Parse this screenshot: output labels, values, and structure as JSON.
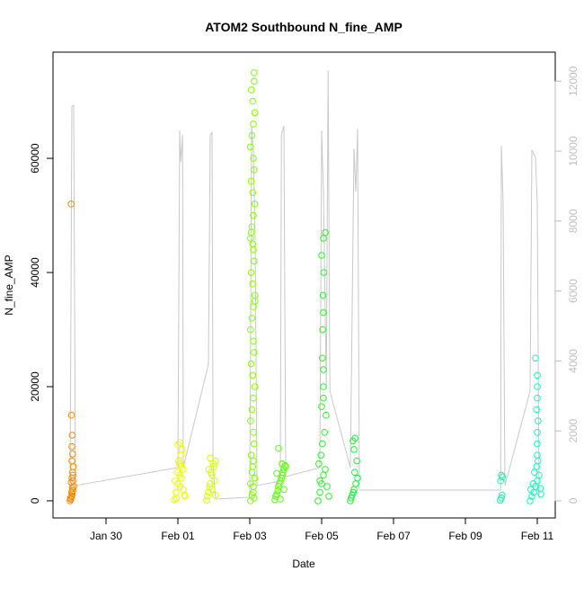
{
  "chart_data": {
    "type": "scatter",
    "title": "ATOM2 Southbound N_fine_AMP",
    "x_label": "Date",
    "y_label": "N_fine_AMP",
    "xlim": [
      28.525,
      42.5
    ],
    "xticks": [
      {
        "value": 30,
        "label": "Jan 30"
      },
      {
        "value": 32,
        "label": "Feb 01"
      },
      {
        "value": 34,
        "label": "Feb 03"
      },
      {
        "value": 36,
        "label": "Feb 05"
      },
      {
        "value": 38,
        "label": "Feb 07"
      },
      {
        "value": 40,
        "label": "Feb 09"
      },
      {
        "value": 42,
        "label": "Feb 11"
      }
    ],
    "ylim": [
      -3000,
      78600
    ],
    "yticks": [
      0,
      20000,
      40000,
      60000
    ],
    "y2lim": [
      -490,
      12830
    ],
    "y2ticks": [
      0,
      2000,
      4000,
      6000,
      8000,
      10000,
      12000
    ],
    "y2_color": "#bebebe",
    "series": [
      {
        "color": "#f58a0a",
        "x": [
          29.0,
          29.02,
          29.04,
          29.06,
          29.08,
          29.1,
          29.03,
          29.05,
          29.07,
          29.09,
          29.01,
          29.04,
          29.06,
          29.08,
          29.05,
          29.07,
          29.05,
          29.06,
          29.04,
          29.03,
          29.05,
          29.08
        ],
        "values": [
          0,
          300,
          700,
          1200,
          1800,
          2500,
          3200,
          4000,
          5000,
          6000,
          500,
          1500,
          2200,
          3500,
          7000,
          8200,
          9500,
          11500,
          15000,
          52000,
          900,
          4500
        ]
      },
      {
        "color": "#e8ff00",
        "x": [
          31.9,
          31.95,
          32.0,
          32.05,
          32.1,
          32.15,
          32.2,
          31.92,
          31.98,
          32.02,
          32.08,
          32.12,
          32.18,
          32.0,
          32.05,
          32.1,
          31.96,
          32.04,
          32.06,
          32.14
        ],
        "values": [
          200,
          1500,
          3000,
          4500,
          6000,
          2000,
          800,
          3500,
          5000,
          7000,
          8000,
          9000,
          1000,
          9800,
          10200,
          4000,
          500,
          6500,
          2500,
          5500
        ]
      },
      {
        "color": "#d6ff00",
        "x": [
          32.8,
          32.85,
          32.9,
          32.95,
          33.0,
          33.05,
          32.82,
          32.88,
          32.92,
          32.98,
          33.02,
          32.9,
          32.95,
          32.86,
          33.04
        ],
        "values": [
          100,
          1500,
          3000,
          4500,
          6000,
          7000,
          800,
          2500,
          5000,
          6500,
          3500,
          7500,
          2000,
          5500,
          1000
        ]
      },
      {
        "color": "#80ff00",
        "x": [
          34.02,
          34.06,
          34.1,
          34.14,
          34.08,
          34.04,
          34.12,
          34.1,
          34.02,
          34.06,
          34.1,
          34.14,
          34.08,
          34.04,
          34.12,
          34.1,
          34.02,
          34.06,
          34.1,
          34.14,
          34.08,
          34.04,
          34.12,
          34.1,
          34.02,
          34.06,
          34.1,
          34.14,
          34.08,
          34.04,
          34.12,
          34.1,
          34.02,
          34.06,
          34.1,
          34.14,
          34.08,
          34.04,
          34.12,
          34.12,
          34.02,
          34.06,
          34.1,
          34.14,
          34.08,
          34.04,
          34.12,
          34.1
        ],
        "values": [
          0,
          1000,
          2500,
          4000,
          6000,
          8000,
          10000,
          12000,
          14000,
          16000,
          18000,
          20000,
          22000,
          24000,
          26000,
          28000,
          30000,
          32000,
          34000,
          36000,
          38000,
          40000,
          42000,
          44000,
          46000,
          48000,
          50000,
          52000,
          54000,
          56000,
          58000,
          60000,
          62000,
          64000,
          66000,
          68000,
          70000,
          72000,
          73500,
          75000,
          3000,
          5000,
          7000,
          35000,
          45000,
          47000,
          500,
          1500
        ]
      },
      {
        "color": "#5cff10",
        "x": [
          34.7,
          34.75,
          34.8,
          34.85,
          34.9,
          34.95,
          35.0,
          34.72,
          34.78,
          34.82,
          34.88,
          34.92,
          34.98,
          34.8,
          34.9,
          34.85,
          34.95,
          34.75
        ],
        "values": [
          200,
          1200,
          2500,
          3500,
          4500,
          5500,
          6000,
          800,
          1800,
          3000,
          4000,
          5000,
          6200,
          9200,
          6500,
          300,
          2000,
          4800
        ]
      },
      {
        "color": "#2ef02e",
        "x": [
          35.9,
          35.95,
          36.0,
          36.05,
          36.1,
          36.15,
          36.2,
          35.92,
          35.98,
          36.02,
          36.08,
          36.12,
          36.0,
          36.05,
          36.05,
          36.05,
          36.02,
          36.03,
          36.05,
          36.04,
          36.06,
          36.0,
          36.05,
          36.1,
          35.95
        ],
        "values": [
          0,
          1500,
          3000,
          4500,
          5500,
          2500,
          800,
          6500,
          8000,
          10000,
          12000,
          15000,
          16500,
          18000,
          20000,
          23000,
          25000,
          30000,
          33000,
          36000,
          40000,
          43000,
          46000,
          47000,
          3500
        ]
      },
      {
        "color": "#1eee44",
        "x": [
          36.8,
          36.85,
          36.9,
          36.95,
          37.0,
          36.82,
          36.88,
          36.92,
          36.98,
          36.9,
          36.87,
          36.93
        ],
        "values": [
          0,
          1000,
          2000,
          3000,
          4000,
          500,
          1500,
          5000,
          7000,
          9000,
          10500,
          11000
        ]
      },
      {
        "color": "#22eeaa",
        "x": [
          40.97,
          41.0,
          41.02,
          40.98,
          41.03,
          41.0
        ],
        "values": [
          100,
          500,
          1000,
          3500,
          4200,
          4500
        ]
      },
      {
        "color": "#14f8bb",
        "x": [
          41.8,
          41.85,
          41.9,
          41.95,
          42.0,
          42.05,
          42.1,
          41.82,
          41.88,
          41.92,
          41.98,
          42.02,
          42.08,
          42.0,
          42.0,
          42.0,
          42.02,
          41.98,
          42.0,
          42.0,
          42.0,
          41.95
        ],
        "values": [
          0,
          800,
          1500,
          2500,
          3500,
          4500,
          1200,
          2000,
          3000,
          5000,
          6000,
          7000,
          2200,
          8000,
          10000,
          12000,
          14000,
          16000,
          18000,
          20000,
          22000,
          25000
        ]
      },
      {
        "type": "line",
        "axis": "y2",
        "color": "#c8c8c8",
        "x": [
          29.0,
          29.05,
          29.1,
          29.15,
          32.0,
          32.05,
          32.08,
          32.13,
          32.15,
          32.85,
          32.9,
          32.95,
          32.98,
          33.05,
          34.0,
          34.05,
          34.1,
          34.15,
          34.2,
          34.85,
          34.88,
          34.95,
          35.0,
          35.95,
          36.0,
          36.05,
          36.13,
          36.18,
          36.23,
          36.8,
          36.9,
          36.95,
          37.0,
          37.05,
          40.98,
          41.0,
          41.05,
          41.1,
          41.8,
          41.85,
          41.95,
          42.0,
          42.05
        ],
        "values": [
          231,
          11285,
          11311,
          437,
          951,
          10590,
          9690,
          10460,
          951,
          3906,
          10460,
          10540,
          951,
          51,
          103,
          10720,
          9950,
          7505,
          437,
          565,
          10460,
          10720,
          694,
          951,
          10590,
          8840,
          3264,
          12310,
          3136,
          951,
          10080,
          8840,
          10640,
          308,
          308,
          10150,
          8510,
          437,
          3136,
          10030,
          9820,
          8460,
          51
        ]
      }
    ]
  }
}
